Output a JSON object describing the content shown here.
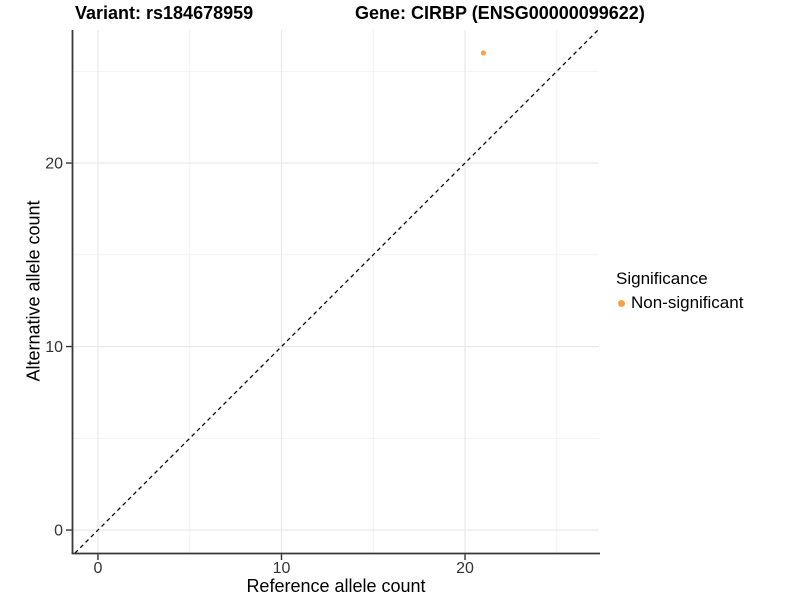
{
  "titles": {
    "variant": "Variant: rs184678959",
    "gene": "Gene: CIRBP (ENSG00000099622)"
  },
  "axes": {
    "x_label": "Reference allele count",
    "y_label": "Alternative allele count"
  },
  "legend": {
    "title": "Significance",
    "items": [
      {
        "label": "Non-significant",
        "color": "#F9A242"
      }
    ]
  },
  "colors": {
    "background": "#FFFFFF",
    "point": "#F9A242",
    "grid_major": "#E6E6E6",
    "grid_minor": "#F0F0F0",
    "axis_line": "#383838",
    "tick_mark": "#333333",
    "tick_label": "#333333",
    "identity_line": "#000000",
    "title_text": "#000000"
  },
  "chart_data": {
    "type": "scatter",
    "title": "Variant: rs184678959 / Gene: CIRBP (ENSG00000099622)",
    "xlabel": "Reference allele count",
    "ylabel": "Alternative allele count",
    "series": [
      {
        "name": "Non-significant",
        "color": "#F9A242",
        "points": [
          {
            "x": 21,
            "y": 26
          }
        ]
      }
    ],
    "identity_line": {
      "slope": 1,
      "intercept": 0,
      "style": "dashed"
    },
    "xlim": [
      -1.36,
      27.3
    ],
    "ylim": [
      -1.25,
      27.25
    ],
    "x_ticks": [
      0,
      10,
      20
    ],
    "y_ticks": [
      0,
      10,
      20
    ],
    "x_minor_ticks": [
      5,
      15,
      25
    ],
    "y_minor_ticks": [
      5,
      15,
      25
    ],
    "grid": true,
    "legend_position": "right"
  }
}
